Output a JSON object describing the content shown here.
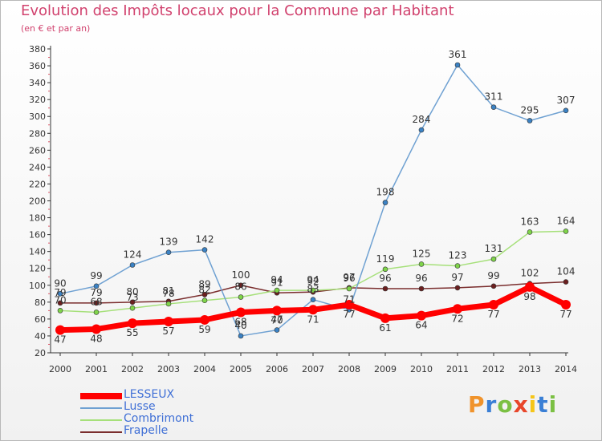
{
  "title": "Evolution des Impôts locaux pour la Commune par Habitant",
  "subtitle": "(en € et par an)",
  "logo": {
    "letters": [
      "P",
      "r",
      "o",
      "x",
      "i",
      "t",
      "i"
    ],
    "colors": [
      "#f0932b",
      "#3a7fd5",
      "#7bc043",
      "#e8462a",
      "#f5c518",
      "#3a7fd5",
      "#7bc043"
    ]
  },
  "chart_data": {
    "type": "line",
    "x": [
      "2000",
      "2001",
      "2002",
      "2003",
      "2004",
      "2005",
      "2006",
      "2007",
      "2008",
      "2009",
      "2010",
      "2011",
      "2012",
      "2013",
      "2014"
    ],
    "ylim": [
      20,
      380
    ],
    "yticks": [
      20,
      40,
      60,
      80,
      100,
      120,
      140,
      160,
      180,
      200,
      220,
      240,
      260,
      280,
      300,
      320,
      340,
      360,
      380
    ],
    "grid": false,
    "legend": "bottom-left",
    "series": [
      {
        "name": "Frapelle",
        "color": "#7a2d2d",
        "marker": "#6b1f1f",
        "width": 1.5,
        "values": [
          79,
          79,
          80,
          81,
          89,
          100,
          91,
          92,
          97,
          96,
          96,
          97,
          99,
          102,
          104
        ]
      },
      {
        "name": "Combrimont",
        "color": "#a6e07a",
        "marker": "#7fd44a",
        "width": 1.5,
        "values": [
          70,
          68,
          73,
          78,
          82,
          86,
          94,
          94,
          96,
          119,
          125,
          123,
          131,
          163,
          164
        ]
      },
      {
        "name": "Lusse",
        "color": "#6fa1d2",
        "marker": "#3b82c4",
        "width": 1.5,
        "values": [
          90,
          99,
          124,
          139,
          142,
          40,
          47,
          83,
          71,
          198,
          284,
          361,
          311,
          295,
          307
        ]
      },
      {
        "name": "LESSEUX",
        "color": "#ff0000",
        "marker": "#ff0000",
        "width": 7,
        "values": [
          47,
          48,
          55,
          57,
          59,
          68,
          70,
          71,
          77,
          61,
          64,
          72,
          77,
          98,
          77
        ]
      }
    ],
    "legend_order": [
      "LESSEUX",
      "Lusse",
      "Combrimont",
      "Frapelle"
    ]
  }
}
